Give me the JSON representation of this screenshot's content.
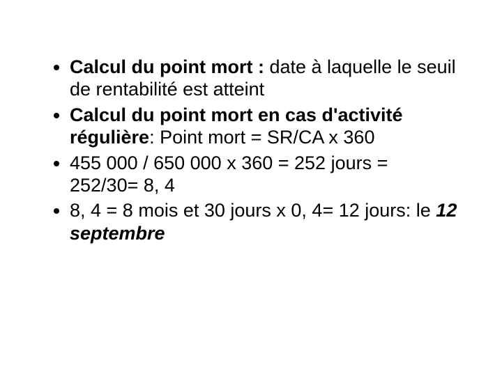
{
  "text_color": "#000000",
  "background_color": "#ffffff",
  "font_size_pt": 27,
  "bullets": {
    "b1": {
      "lead": "Calcul du point mort : ",
      "rest": "date à laquelle le seuil de rentabilité est atteint"
    },
    "b2": {
      "lead": "Calcul du point mort en cas d'activité régulière",
      "rest": ": Point mort = SR/CA x 360"
    },
    "b3": {
      "text": "455 000 / 650 000 x 360 = 252 jours = 252/30= 8, 4"
    },
    "b4": {
      "pre": "8, 4 = 8 mois et 30 jours x 0, 4= 12 jours: le ",
      "emph": "12 septembre"
    }
  }
}
